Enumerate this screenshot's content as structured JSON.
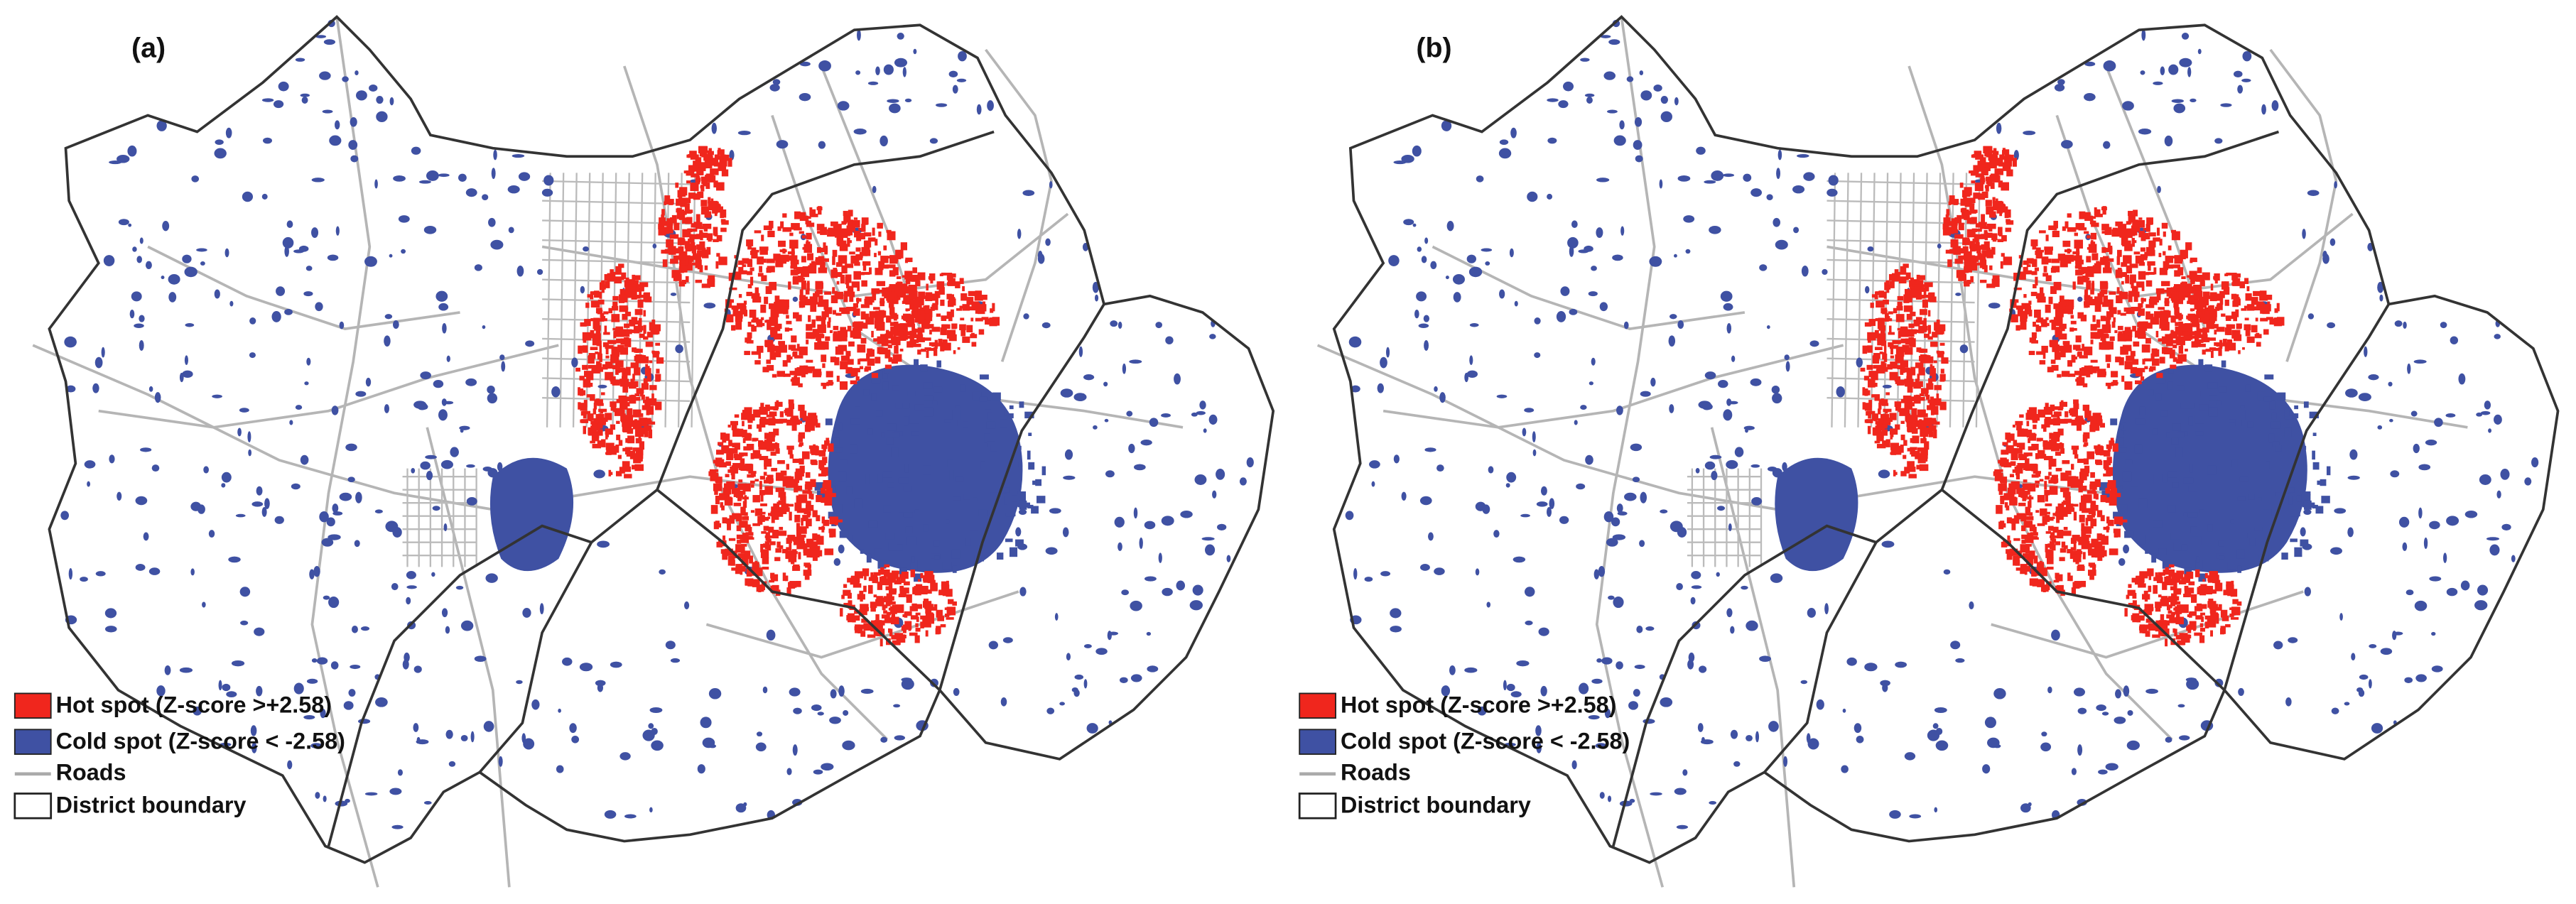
{
  "panels": [
    {
      "label": "(a)",
      "legend": [
        "Hot spot  (Z-score >+2.58)",
        "Cold spot (Z-score < -2.58)",
        "Roads",
        "District boundary"
      ]
    },
    {
      "label": "(b)",
      "legend": [
        "Hot spot  (Z-score >+2.58)",
        "Cold spot (Z-score < -2.58)",
        "Roads",
        "District boundary"
      ]
    }
  ]
}
